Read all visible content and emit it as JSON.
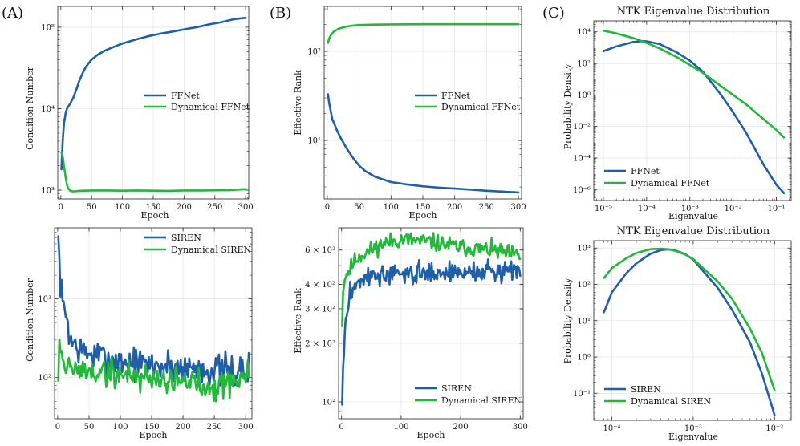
{
  "panel_labels": [
    "(A)",
    "(B)",
    "(C)"
  ],
  "colors": {
    "blue": "#1f5ea8",
    "green": "#22b83a"
  },
  "chart_data": [
    {
      "id": "a_top",
      "type": "line",
      "title": "",
      "xlabel": "Epoch",
      "ylabel": "Condition Number",
      "yscale": "log",
      "xlim": [
        -5,
        305
      ],
      "ylim": [
        780,
        180000
      ],
      "xticks": [
        0,
        50,
        100,
        150,
        200,
        250,
        300
      ],
      "xtick_labels": [
        "0",
        "50",
        "100",
        "150",
        "200",
        "250",
        "300"
      ],
      "yticks": [
        1000,
        10000,
        100000
      ],
      "ytick_labels": [
        "10³",
        "10⁴",
        "10⁵"
      ],
      "legend_loc": "center-right",
      "series": [
        {
          "name": "FFNet",
          "color": "#1f5ea8",
          "kind": "points",
          "x": [
            1,
            3,
            5,
            8,
            10,
            15,
            20,
            25,
            30,
            35,
            40,
            45,
            50,
            60,
            70,
            80,
            90,
            100,
            120,
            140,
            160,
            180,
            200,
            220,
            240,
            260,
            280,
            290,
            300
          ],
          "y": [
            1800,
            4000,
            6500,
            9000,
            10000,
            11500,
            13500,
            17000,
            22000,
            27000,
            32000,
            36000,
            40000,
            46000,
            51000,
            55000,
            59000,
            63000,
            70000,
            77000,
            83000,
            88000,
            94000,
            100000,
            108000,
            115000,
            125000,
            128000,
            130000
          ]
        },
        {
          "name": "Dynamical FFNet",
          "color": "#22b83a",
          "kind": "points",
          "x": [
            1,
            3,
            5,
            8,
            10,
            12,
            15,
            18,
            20,
            25,
            30,
            40,
            50,
            75,
            100,
            125,
            150,
            175,
            200,
            225,
            250,
            275,
            290,
            300
          ],
          "y": [
            2900,
            2600,
            2000,
            1400,
            1150,
            1050,
            990,
            970,
            965,
            970,
            980,
            985,
            990,
            990,
            985,
            990,
            985,
            980,
            990,
            990,
            995,
            1000,
            1020,
            1030
          ]
        }
      ]
    },
    {
      "id": "a_bottom",
      "type": "line",
      "title": "",
      "xlabel": "Epoch",
      "ylabel": "Condition Number",
      "yscale": "log",
      "xlim": [
        -5,
        310
      ],
      "ylim": [
        30,
        8000
      ],
      "xticks": [
        0,
        50,
        100,
        150,
        200,
        250,
        300
      ],
      "xtick_labels": [
        "0",
        "50",
        "100",
        "150",
        "200",
        "250",
        "300"
      ],
      "yticks": [
        100,
        1000
      ],
      "ytick_labels": [
        "10²",
        "10³"
      ],
      "legend_loc": "top-right",
      "series": [
        {
          "name": "SIREN",
          "color": "#1f5ea8",
          "kind": "noisy",
          "x0": 1,
          "x1": 305,
          "n": 180,
          "seed": 7,
          "anchors_x": [
            1,
            3,
            6,
            10,
            15,
            20,
            40,
            100,
            150,
            200,
            250,
            300,
            305
          ],
          "anchors_y": [
            5500,
            2600,
            1100,
            700,
            600,
            300,
            210,
            160,
            145,
            135,
            125,
            120,
            125
          ],
          "noise": 0.24
        },
        {
          "name": "Dynamical SIREN",
          "color": "#22b83a",
          "kind": "noisy",
          "x0": 1,
          "x1": 305,
          "n": 180,
          "seed": 19,
          "anchors_x": [
            1,
            3,
            6,
            10,
            20,
            40,
            100,
            150,
            200,
            250,
            300,
            305
          ],
          "anchors_y": [
            110,
            420,
            190,
            150,
            130,
            120,
            110,
            100,
            90,
            80,
            100,
            105
          ],
          "noise": 0.22
        }
      ]
    },
    {
      "id": "b_top",
      "type": "line",
      "title": "",
      "xlabel": "Epoch",
      "ylabel": "Effective Rank",
      "yscale": "log",
      "xlim": [
        -5,
        305
      ],
      "ylim": [
        2.2,
        320
      ],
      "xticks": [
        0,
        50,
        100,
        150,
        200,
        250,
        300
      ],
      "xtick_labels": [
        "0",
        "50",
        "100",
        "150",
        "200",
        "250",
        "300"
      ],
      "yticks": [
        10,
        100
      ],
      "ytick_labels": [
        "10¹",
        "10²"
      ],
      "legend_loc": "center-right",
      "series": [
        {
          "name": "FFNet",
          "color": "#1f5ea8",
          "kind": "points",
          "x": [
            1,
            3,
            5,
            8,
            10,
            15,
            20,
            25,
            30,
            40,
            50,
            60,
            75,
            100,
            125,
            150,
            175,
            200,
            225,
            250,
            275,
            300
          ],
          "y": [
            33,
            26,
            22,
            17,
            16,
            13,
            11,
            9.5,
            8.2,
            6.4,
            5.2,
            4.5,
            3.9,
            3.4,
            3.2,
            3.05,
            2.95,
            2.88,
            2.8,
            2.72,
            2.66,
            2.6
          ]
        },
        {
          "name": "Dynamical FFNet",
          "color": "#22b83a",
          "kind": "points",
          "x": [
            1,
            3,
            5,
            8,
            10,
            15,
            20,
            30,
            40,
            50,
            75,
            100,
            150,
            200,
            250,
            300
          ],
          "y": [
            125,
            140,
            150,
            160,
            166,
            175,
            182,
            190,
            195,
            198,
            200,
            201,
            202,
            202,
            202,
            202
          ]
        }
      ]
    },
    {
      "id": "b_bottom",
      "type": "line",
      "title": "",
      "xlabel": "Epoch",
      "ylabel": "Effective Rank",
      "yscale": "log",
      "xlim": [
        -5,
        305
      ],
      "ylim": [
        82,
        780
      ],
      "xticks": [
        0,
        100,
        200,
        300
      ],
      "xtick_labels": [
        "0",
        "100",
        "200",
        "300"
      ],
      "yticks": [
        100,
        200,
        300,
        400,
        600
      ],
      "ytick_labels": [
        "10²",
        "2 × 10²",
        "3 × 10²",
        "4 × 10²",
        "6 × 10²"
      ],
      "legend_loc": "bottom-right",
      "series": [
        {
          "name": "SIREN",
          "color": "#1f5ea8",
          "kind": "noisy",
          "x0": 1,
          "x1": 300,
          "n": 200,
          "seed": 3,
          "anchors_x": [
            1,
            3,
            6,
            10,
            15,
            20,
            30,
            50,
            100,
            150,
            200,
            250,
            300
          ],
          "anchors_y": [
            95,
            160,
            240,
            300,
            360,
            390,
            420,
            440,
            450,
            460,
            460,
            465,
            480
          ],
          "noise": 0.06
        },
        {
          "name": "Dynamical SIREN",
          "color": "#22b83a",
          "kind": "noisy",
          "x0": 1,
          "x1": 300,
          "n": 200,
          "seed": 11,
          "anchors_x": [
            1,
            3,
            6,
            10,
            15,
            20,
            30,
            50,
            70,
            100,
            150,
            200,
            250,
            300
          ],
          "anchors_y": [
            260,
            400,
            440,
            460,
            480,
            520,
            560,
            600,
            650,
            680,
            660,
            620,
            600,
            560
          ],
          "noise": 0.05
        }
      ]
    },
    {
      "id": "c_top",
      "type": "line",
      "title": "NTK Eigenvalue Distribution",
      "xlabel": "Eigenvalue",
      "ylabel": "Probability Density",
      "xscale": "log",
      "yscale": "log",
      "xlim": [
        6e-06,
        0.22
      ],
      "ylim": [
        2e-07,
        50000
      ],
      "xticks": [
        1e-05,
        0.0001,
        0.001,
        0.01,
        0.1
      ],
      "xtick_labels": [
        "10⁻⁵",
        "10⁻⁴",
        "10⁻³",
        "10⁻²",
        "10⁻¹"
      ],
      "yticks": [
        1e-06,
        0.0001,
        0.01,
        1,
        100,
        10000
      ],
      "ytick_labels": [
        "10⁻⁶",
        "10⁻⁴",
        "10⁻²",
        "10⁰",
        "10²",
        "10⁴"
      ],
      "legend_loc": "bottom-left",
      "series": [
        {
          "name": "FFNet",
          "color": "#1f5ea8",
          "kind": "points",
          "x": [
            1e-05,
            2e-05,
            5e-05,
            8e-05,
            0.0001,
            0.0002,
            0.0005,
            0.001,
            0.002,
            0.005,
            0.01,
            0.02,
            0.05,
            0.1,
            0.15
          ],
          "y": [
            600,
            1200,
            2300,
            2600,
            2500,
            1700,
            500,
            150,
            30,
            1.2,
            0.08,
            0.004,
            4e-05,
            2e-06,
            6e-07
          ]
        },
        {
          "name": "Dynamical FFNet",
          "color": "#22b83a",
          "kind": "points",
          "x": [
            1e-05,
            2e-05,
            5e-05,
            0.0001,
            0.0002,
            0.0005,
            0.001,
            0.002,
            0.005,
            0.01,
            0.02,
            0.05,
            0.1,
            0.15
          ],
          "y": [
            12000,
            8000,
            4000,
            2000,
            900,
            250,
            80,
            25,
            4,
            1,
            0.25,
            0.03,
            0.006,
            0.002
          ]
        }
      ]
    },
    {
      "id": "c_bottom",
      "type": "line",
      "title": "NTK Eigenvalue Distribution",
      "xlabel": "Eigenvalue",
      "ylabel": "Probability Density",
      "xscale": "log",
      "yscale": "log",
      "xlim": [
        6e-05,
        0.016
      ],
      "ylim": [
        0.018,
        1600
      ],
      "xticks": [
        0.0001,
        0.001,
        0.01
      ],
      "xtick_labels": [
        "10⁻⁴",
        "10⁻³",
        "10⁻²"
      ],
      "yticks": [
        0.1,
        1,
        10,
        100,
        1000
      ],
      "ytick_labels": [
        "10⁻¹",
        "10⁰",
        "10¹",
        "10²",
        "10³"
      ],
      "legend_loc": "bottom-left",
      "series": [
        {
          "name": "SIREN",
          "color": "#1f5ea8",
          "kind": "points",
          "x": [
            8e-05,
            0.0001,
            0.00015,
            0.0002,
            0.0003,
            0.0004,
            0.0005,
            0.0006,
            0.0008,
            0.001,
            0.002,
            0.003,
            0.005,
            0.007,
            0.01
          ],
          "y": [
            17,
            60,
            200,
            380,
            700,
            880,
            920,
            860,
            680,
            480,
            80,
            20,
            2.5,
            0.35,
            0.025
          ]
        },
        {
          "name": "Dynamical SIREN",
          "color": "#22b83a",
          "kind": "points",
          "x": [
            8e-05,
            0.0001,
            0.00015,
            0.0002,
            0.0003,
            0.0004,
            0.0005,
            0.0006,
            0.0008,
            0.001,
            0.002,
            0.003,
            0.005,
            0.007,
            0.01
          ],
          "y": [
            150,
            280,
            520,
            730,
            930,
            960,
            920,
            840,
            660,
            500,
            120,
            40,
            6,
            1.3,
            0.12
          ]
        }
      ]
    }
  ]
}
